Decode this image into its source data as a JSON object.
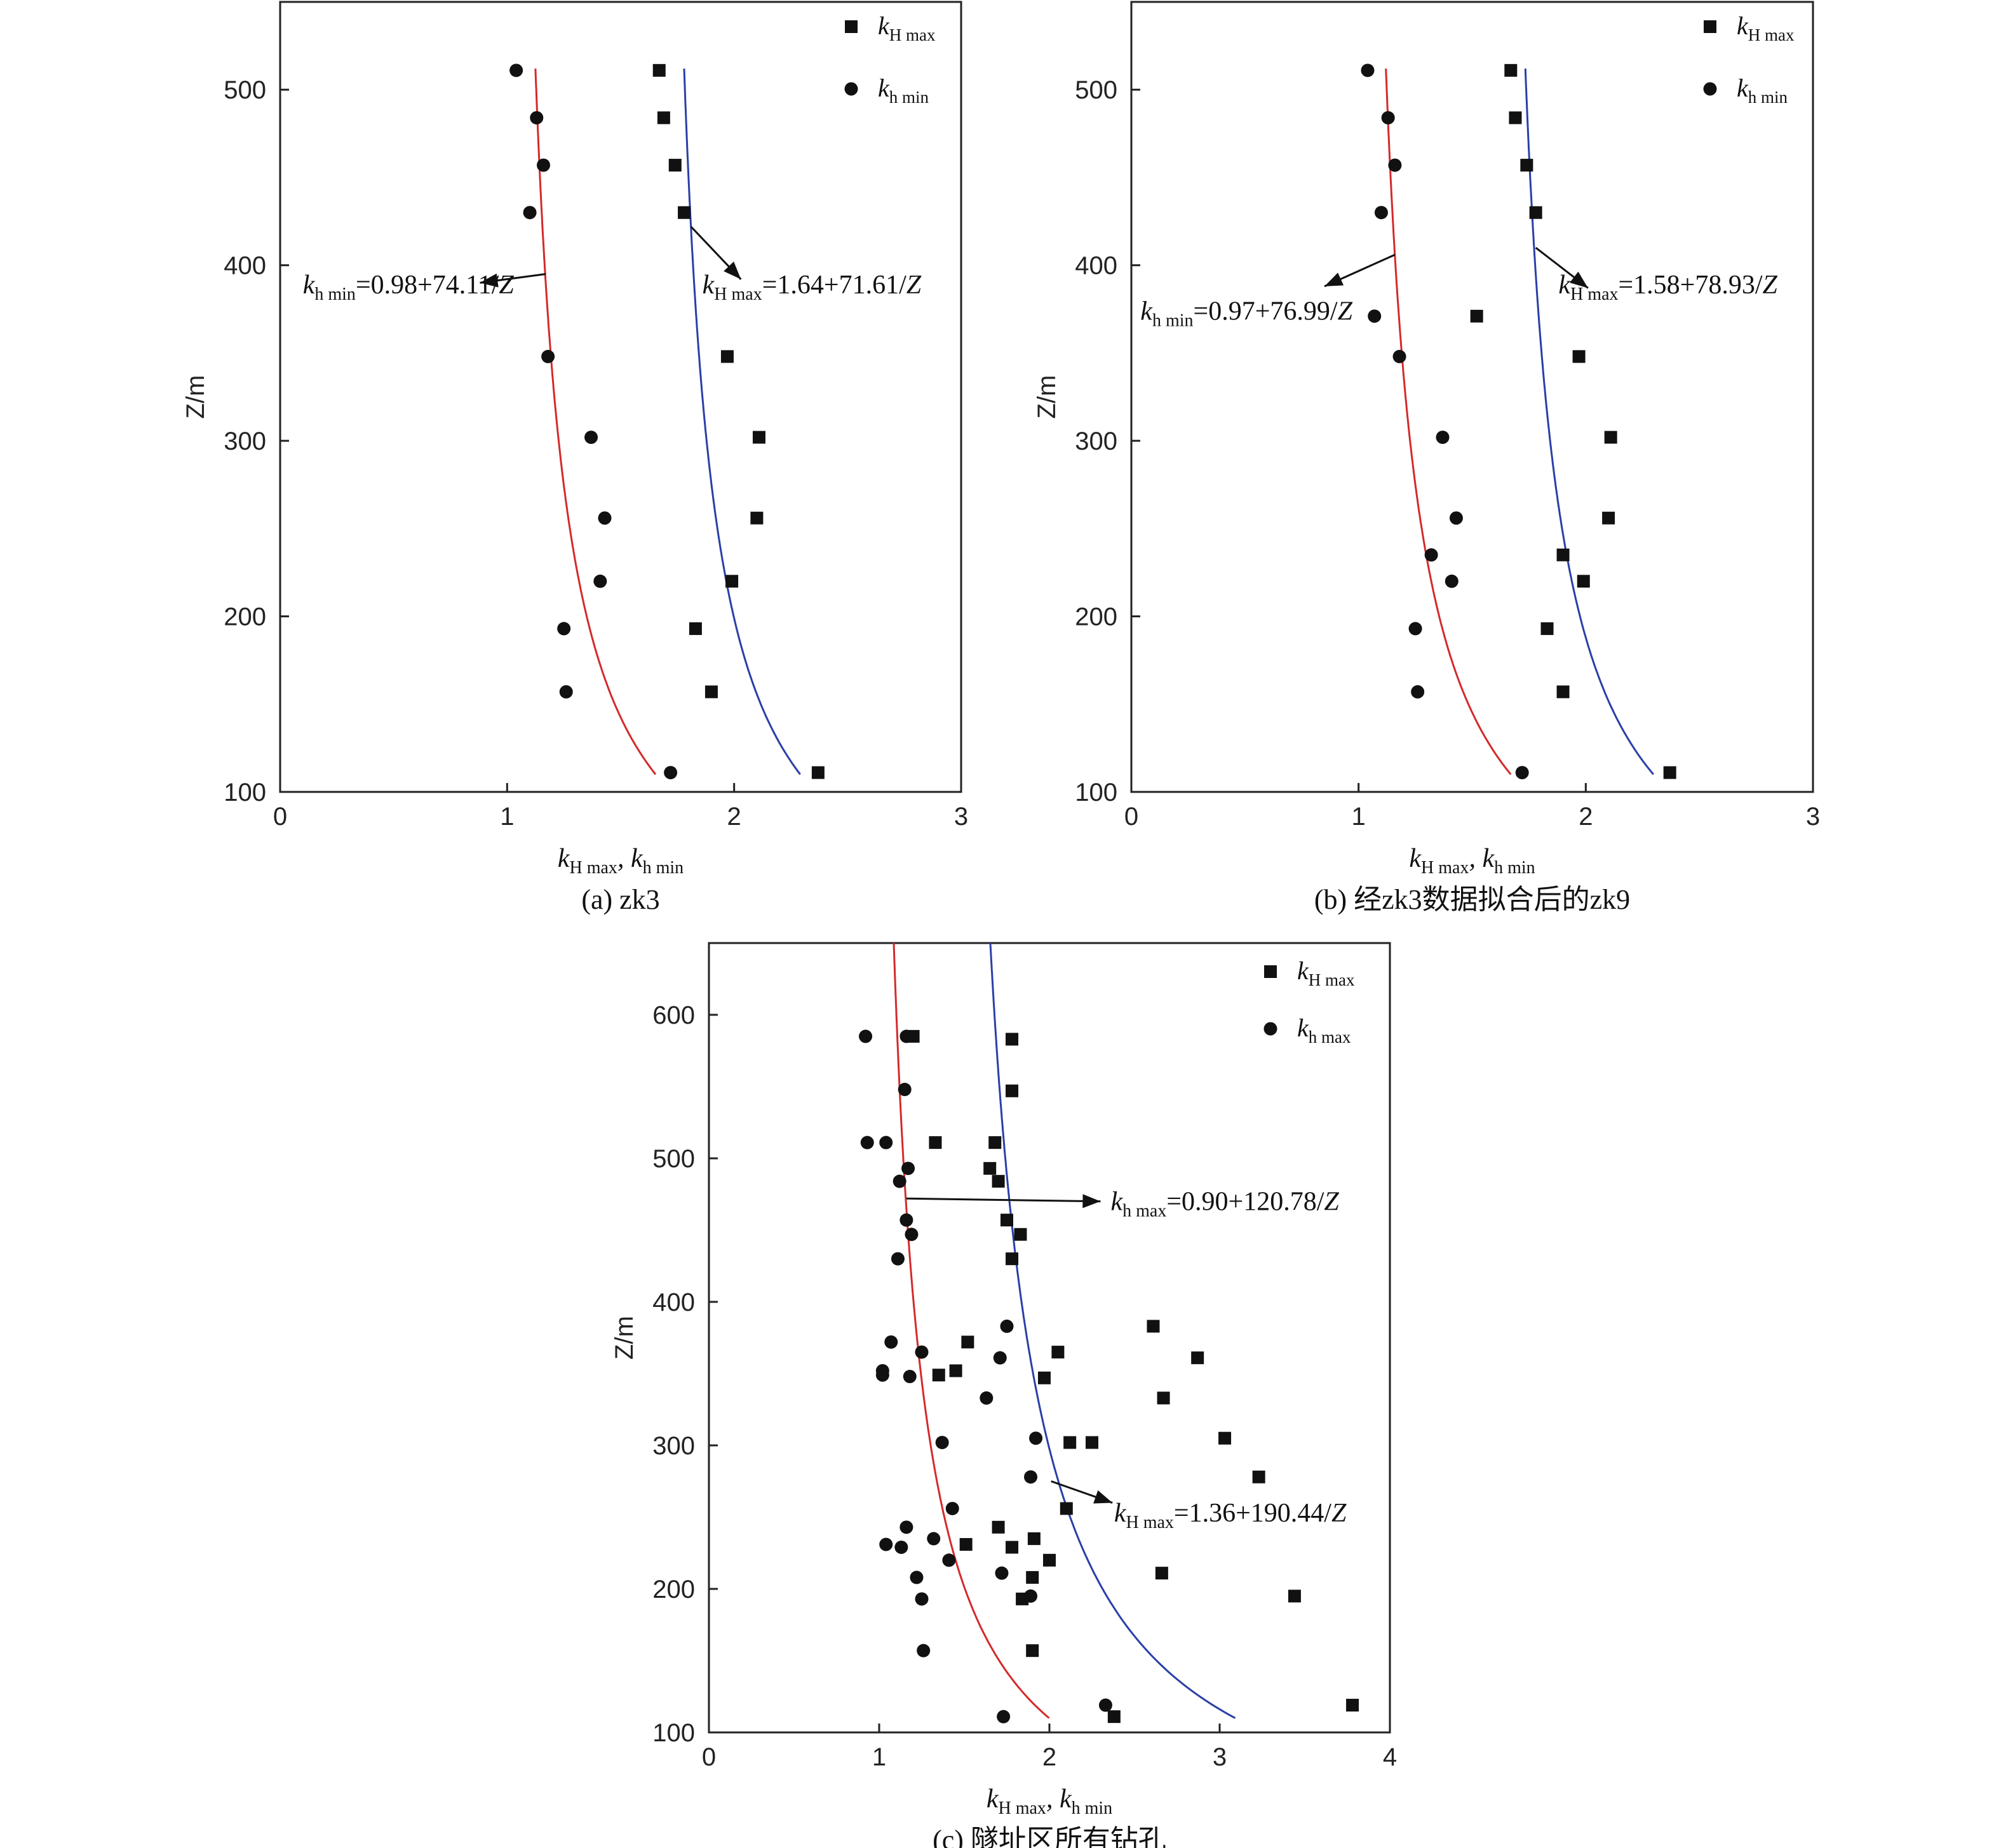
{
  "chart_data": [
    {
      "id": "a",
      "type": "scatter",
      "caption": "(a) zk3",
      "xlim": [
        0,
        3
      ],
      "ylim": [
        100,
        550
      ],
      "xticks": [
        0,
        1,
        2,
        3
      ],
      "yticks": [
        100,
        200,
        300,
        400,
        500
      ],
      "xlabel_main": "k",
      "xlabel_sub1": "H max",
      "xlabel_mid": ", k",
      "xlabel_sub2": "h min",
      "ylabel": "Z/m",
      "legend": [
        {
          "marker": "square",
          "k": "k",
          "sub": "H max"
        },
        {
          "marker": "circle",
          "k": "k",
          "sub": "h  min"
        }
      ],
      "series": [
        {
          "name": "kH max",
          "marker": "square",
          "points": [
            [
              1.67,
              511
            ],
            [
              1.69,
              484
            ],
            [
              1.74,
              457
            ],
            [
              1.78,
              430
            ],
            [
              1.97,
              348
            ],
            [
              2.11,
              302
            ],
            [
              2.1,
              256
            ],
            [
              1.99,
              220
            ],
            [
              1.83,
              193
            ],
            [
              1.9,
              157
            ],
            [
              2.37,
              111
            ]
          ]
        },
        {
          "name": "kh min",
          "marker": "circle",
          "points": [
            [
              1.04,
              511
            ],
            [
              1.13,
              484
            ],
            [
              1.16,
              457
            ],
            [
              1.1,
              430
            ],
            [
              1.18,
              348
            ],
            [
              1.37,
              302
            ],
            [
              1.43,
              256
            ],
            [
              1.41,
              220
            ],
            [
              1.25,
              193
            ],
            [
              1.26,
              157
            ],
            [
              1.72,
              111
            ]
          ]
        }
      ],
      "fits": [
        {
          "color": "#d42a2a",
          "a": 0.98,
          "b": 74.11,
          "zmin": 110,
          "zmax": 512
        },
        {
          "color": "#2a3fa8",
          "a": 1.64,
          "b": 71.61,
          "zmin": 110,
          "zmax": 512
        }
      ],
      "annotations": [
        {
          "k": "k",
          "sub": "h min",
          "eq": "=0.98+74.11/",
          "z": "Z",
          "at": [
            0.1,
            384
          ],
          "arrow_from": [
            1.17,
            395
          ],
          "arrow_to": [
            0.88,
            390
          ]
        },
        {
          "k": "k",
          "sub": "H max",
          "eq": "=1.64+71.61/",
          "z": "Z",
          "at": [
            1.86,
            384
          ],
          "arrow_from": [
            1.81,
            422
          ],
          "arrow_to": [
            2.03,
            392
          ]
        }
      ]
    },
    {
      "id": "b",
      "type": "scatter",
      "caption": "(b) 经zk3数据拟合后的zk9",
      "xlim": [
        0,
        3
      ],
      "ylim": [
        100,
        550
      ],
      "xticks": [
        0,
        1,
        2,
        3
      ],
      "yticks": [
        100,
        200,
        300,
        400,
        500
      ],
      "xlabel_main": "k",
      "xlabel_sub1": "H max",
      "xlabel_mid": ", k",
      "xlabel_sub2": "h min",
      "ylabel": "Z/m",
      "legend": [
        {
          "marker": "square",
          "k": "k",
          "sub": "H max"
        },
        {
          "marker": "circle",
          "k": "k",
          "sub": "h  min"
        }
      ],
      "series": [
        {
          "name": "kH max",
          "marker": "square",
          "points": [
            [
              1.67,
              511
            ],
            [
              1.69,
              484
            ],
            [
              1.74,
              457
            ],
            [
              1.78,
              430
            ],
            [
              1.52,
              371
            ],
            [
              1.97,
              348
            ],
            [
              2.11,
              302
            ],
            [
              2.1,
              256
            ],
            [
              1.9,
              235
            ],
            [
              1.99,
              220
            ],
            [
              1.83,
              193
            ],
            [
              1.9,
              157
            ],
            [
              2.37,
              111
            ]
          ]
        },
        {
          "name": "kh min",
          "marker": "circle",
          "points": [
            [
              1.04,
              511
            ],
            [
              1.13,
              484
            ],
            [
              1.16,
              457
            ],
            [
              1.1,
              430
            ],
            [
              1.07,
              371
            ],
            [
              1.18,
              348
            ],
            [
              1.37,
              302
            ],
            [
              1.43,
              256
            ],
            [
              1.32,
              235
            ],
            [
              1.41,
              220
            ],
            [
              1.25,
              193
            ],
            [
              1.26,
              157
            ],
            [
              1.72,
              111
            ]
          ]
        }
      ],
      "fits": [
        {
          "color": "#d42a2a",
          "a": 0.97,
          "b": 76.99,
          "zmin": 110,
          "zmax": 512
        },
        {
          "color": "#2a3fa8",
          "a": 1.58,
          "b": 78.93,
          "zmin": 110,
          "zmax": 512
        }
      ],
      "annotations": [
        {
          "k": "k",
          "sub": "h min",
          "eq": "=0.97+76.99/",
          "z": "Z",
          "at": [
            0.04,
            369
          ],
          "arrow_from": [
            1.16,
            406
          ],
          "arrow_to": [
            0.85,
            388
          ]
        },
        {
          "k": "k",
          "sub": "H max",
          "eq": "=1.58+78.93/",
          "z": "Z",
          "at": [
            1.88,
            384
          ],
          "arrow_from": [
            1.78,
            410
          ],
          "arrow_to": [
            2.01,
            387
          ]
        }
      ]
    },
    {
      "id": "c",
      "type": "scatter",
      "caption": "(c) 隧址区所有钻孔",
      "xlim": [
        0,
        4
      ],
      "ylim": [
        100,
        650
      ],
      "xticks": [
        0,
        1,
        2,
        3,
        4
      ],
      "yticks": [
        100,
        200,
        300,
        400,
        500,
        600
      ],
      "xlabel_main": "k",
      "xlabel_sub1": "H max",
      "xlabel_mid": ", k",
      "xlabel_sub2": "h min",
      "ylabel": "Z/m",
      "legend": [
        {
          "marker": "square",
          "k": "k",
          "sub": "H max"
        },
        {
          "marker": "circle",
          "k": "k",
          "sub": "h max"
        }
      ],
      "series": [
        {
          "name": "kH max",
          "marker": "square",
          "points": [
            [
              1.2,
              585
            ],
            [
              1.78,
              583
            ],
            [
              1.78,
              547
            ],
            [
              1.33,
              511
            ],
            [
              1.68,
              511
            ],
            [
              1.65,
              493
            ],
            [
              1.7,
              484
            ],
            [
              1.75,
              457
            ],
            [
              1.83,
              447
            ],
            [
              1.78,
              430
            ],
            [
              2.61,
              383
            ],
            [
              1.52,
              372
            ],
            [
              2.05,
              365
            ],
            [
              2.87,
              361
            ],
            [
              1.45,
              352
            ],
            [
              1.35,
              349
            ],
            [
              1.97,
              347
            ],
            [
              2.67,
              333
            ],
            [
              3.03,
              305
            ],
            [
              2.12,
              302
            ],
            [
              2.25,
              302
            ],
            [
              3.23,
              278
            ],
            [
              2.1,
              256
            ],
            [
              1.7,
              243
            ],
            [
              1.91,
              235
            ],
            [
              1.51,
              231
            ],
            [
              1.78,
              229
            ],
            [
              2.0,
              220
            ],
            [
              2.66,
              211
            ],
            [
              1.9,
              208
            ],
            [
              3.44,
              195
            ],
            [
              1.84,
              193
            ],
            [
              1.9,
              157
            ],
            [
              3.78,
              119
            ],
            [
              2.38,
              111
            ]
          ]
        },
        {
          "name": "kh max",
          "marker": "circle",
          "points": [
            [
              0.92,
              585
            ],
            [
              1.16,
              585
            ],
            [
              1.15,
              548
            ],
            [
              0.93,
              511
            ],
            [
              1.04,
              511
            ],
            [
              1.17,
              493
            ],
            [
              1.12,
              484
            ],
            [
              1.16,
              457
            ],
            [
              1.19,
              447
            ],
            [
              1.11,
              430
            ],
            [
              1.75,
              383
            ],
            [
              1.07,
              372
            ],
            [
              1.25,
              365
            ],
            [
              1.71,
              361
            ],
            [
              1.02,
              352
            ],
            [
              1.02,
              349
            ],
            [
              1.18,
              348
            ],
            [
              1.63,
              333
            ],
            [
              1.37,
              302
            ],
            [
              1.92,
              305
            ],
            [
              1.89,
              278
            ],
            [
              1.43,
              256
            ],
            [
              1.16,
              243
            ],
            [
              1.32,
              235
            ],
            [
              1.04,
              231
            ],
            [
              1.13,
              229
            ],
            [
              1.41,
              220
            ],
            [
              1.72,
              211
            ],
            [
              1.22,
              208
            ],
            [
              1.25,
              193
            ],
            [
              1.89,
              195
            ],
            [
              1.26,
              157
            ],
            [
              2.33,
              119
            ],
            [
              1.73,
              111
            ]
          ]
        }
      ],
      "fits": [
        {
          "color": "#d42a2a",
          "a": 0.9,
          "b": 120.78,
          "zmin": 110,
          "zmax": 650
        },
        {
          "color": "#2a3fa8",
          "a": 1.36,
          "b": 190.44,
          "zmin": 110,
          "zmax": 650
        }
      ],
      "annotations": [
        {
          "k": "k",
          "sub": "h max",
          "eq": "=0.90+120.78/",
          "z": "Z",
          "at": [
            2.36,
            464
          ],
          "arrow_from": [
            1.16,
            472
          ],
          "arrow_to": [
            2.3,
            470
          ]
        },
        {
          "k": "k",
          "sub": "H max",
          "eq": "=1.36+190.44/",
          "z": "Z",
          "at": [
            2.38,
            247
          ],
          "arrow_from": [
            2.01,
            275
          ],
          "arrow_to": [
            2.37,
            260
          ]
        }
      ]
    }
  ]
}
